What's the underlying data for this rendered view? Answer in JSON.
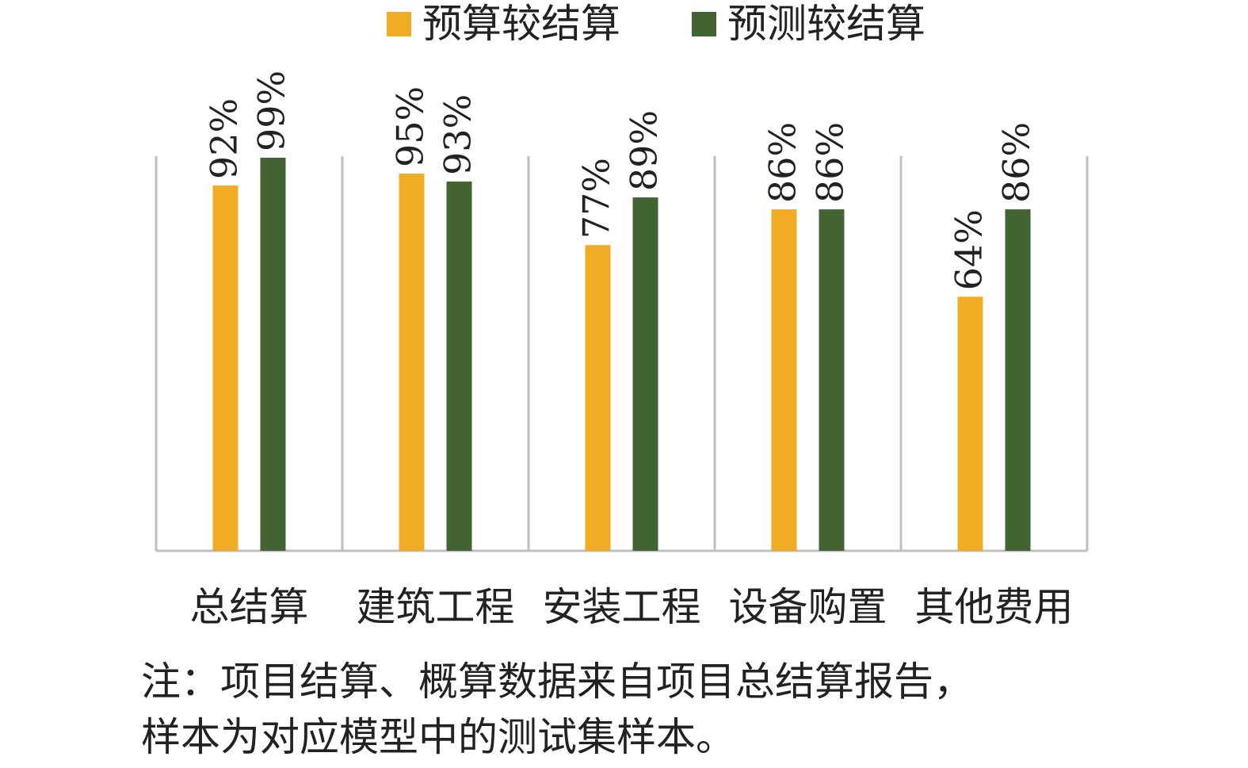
{
  "chart_data": {
    "type": "bar",
    "categories": [
      "总结算",
      "建筑工程",
      "安装工程",
      "设备购置",
      "其他费用"
    ],
    "series": [
      {
        "name": "预算较结算",
        "color": "#F0AC25",
        "values": [
          92,
          95,
          77,
          86,
          64
        ]
      },
      {
        "name": "预测较结算",
        "color": "#426433",
        "values": [
          99,
          93,
          89,
          86,
          86
        ]
      }
    ],
    "data_labels": [
      [
        "92%",
        "95%",
        "77%",
        "86%",
        "64%"
      ],
      [
        "99%",
        "93%",
        "89%",
        "86%",
        "86%"
      ]
    ],
    "ylim": [
      0,
      100
    ],
    "grid": "vertical category separators",
    "legend_position": "top",
    "axis_color": "#BFBFBF"
  },
  "note": {
    "line1": "注：项目结算、概算数据来自项目总结算报告，",
    "line2": "样本为对应模型中的测试集样本。"
  }
}
